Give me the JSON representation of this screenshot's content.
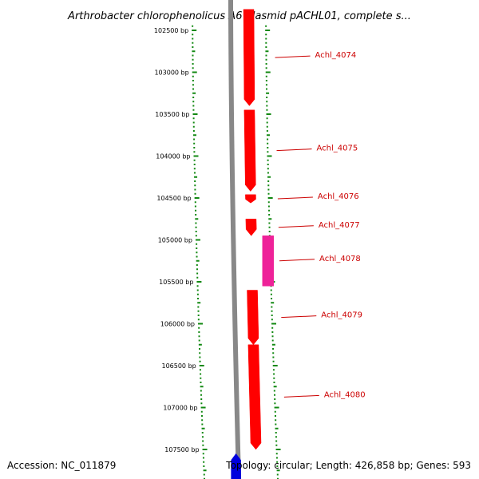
{
  "title": "Arthrobacter chlorophenolicus A6 plasmid pACHL01, complete s...",
  "footer": {
    "accession": "Accession: NC_011879",
    "info": "Topology: circular; Length: 426,858 bp; Genes: 593"
  },
  "colors": {
    "backbone": "#888888",
    "tick": "#118811",
    "forward_gene": "#ff0000",
    "reverse_gene": "#0000dd",
    "rna_gene": "#ee2299",
    "label": "#cc0000"
  },
  "ticks": [
    {
      "bp": 102500,
      "label": "102500 bp"
    },
    {
      "bp": 103000,
      "label": "103000 bp"
    },
    {
      "bp": 103500,
      "label": "103500 bp"
    },
    {
      "bp": 104000,
      "label": "104000 bp"
    },
    {
      "bp": 104500,
      "label": "104500 bp"
    },
    {
      "bp": 105000,
      "label": "105000 bp"
    },
    {
      "bp": 105500,
      "label": "105500 bp"
    },
    {
      "bp": 106000,
      "label": "106000 bp"
    },
    {
      "bp": 106500,
      "label": "106500 bp"
    },
    {
      "bp": 107000,
      "label": "107000 bp"
    },
    {
      "bp": 107500,
      "label": "107500 bp"
    }
  ],
  "genes": [
    {
      "name": "Achl_4074",
      "start": 102250,
      "end": 103400,
      "strand": "+",
      "track": "outer",
      "type": "CDS"
    },
    {
      "name": "Achl_4075",
      "start": 103450,
      "end": 104420,
      "strand": "+",
      "track": "outer",
      "type": "CDS"
    },
    {
      "name": "Achl_4076",
      "start": 104460,
      "end": 104560,
      "strand": "+",
      "track": "outer",
      "type": "CDS"
    },
    {
      "name": "Achl_4077",
      "start": 104750,
      "end": 104950,
      "strand": "+",
      "track": "outer",
      "type": "CDS"
    },
    {
      "name": "Achl_4078",
      "start": 104950,
      "end": 105550,
      "strand": "+",
      "track": "inner",
      "type": "RNA"
    },
    {
      "name": "Achl_4079",
      "start": 105600,
      "end": 106250,
      "strand": "+",
      "track": "outer",
      "type": "CDS"
    },
    {
      "name": "Achl_4080",
      "start": 106250,
      "end": 107500,
      "strand": "+",
      "track": "outer",
      "type": "CDS"
    },
    {
      "name": "",
      "start": 107550,
      "end": 107900,
      "strand": "-",
      "track": "reverse",
      "type": "CDS"
    }
  ],
  "labels": [
    {
      "gene": "Achl_4074"
    },
    {
      "gene": "Achl_4075"
    },
    {
      "gene": "Achl_4076"
    },
    {
      "gene": "Achl_4077"
    },
    {
      "gene": "Achl_4078"
    },
    {
      "gene": "Achl_4079"
    },
    {
      "gene": "Achl_4080"
    }
  ]
}
